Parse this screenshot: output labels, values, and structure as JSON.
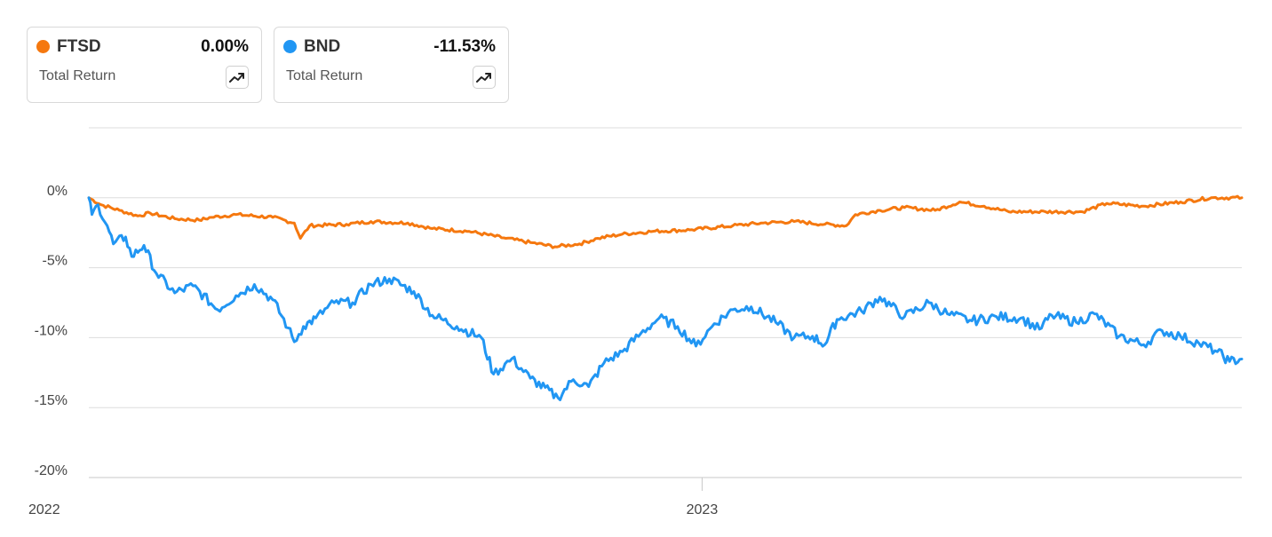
{
  "legend": [
    {
      "ticker": "FTSD",
      "value": "0.00%",
      "label": "Total Return",
      "color": "#f5780f",
      "icon": "trend-up-icon"
    },
    {
      "ticker": "BND",
      "value": "-11.53%",
      "label": "Total Return",
      "color": "#2196f3",
      "icon": "trend-up-icon"
    }
  ],
  "chart_data": {
    "type": "line",
    "x_ticks": [
      "2022",
      "2023"
    ],
    "y_ticks": [
      "0%",
      "-5%",
      "-10%",
      "-15%",
      "-20%"
    ],
    "ylim": [
      -20,
      5
    ],
    "xlim": [
      2022.0,
      2023.88
    ],
    "grid": true,
    "legend_position": "top-left",
    "series": [
      {
        "name": "FTSD",
        "color": "#f5780f",
        "points": [
          [
            2022.0,
            0.0
          ],
          [
            2022.02,
            -0.5
          ],
          [
            2022.05,
            -0.9
          ],
          [
            2022.08,
            -1.3
          ],
          [
            2022.1,
            -1.1
          ],
          [
            2022.14,
            -1.5
          ],
          [
            2022.18,
            -1.6
          ],
          [
            2022.2,
            -1.4
          ],
          [
            2022.24,
            -1.2
          ],
          [
            2022.3,
            -1.4
          ],
          [
            2022.335,
            -1.8
          ],
          [
            2022.345,
            -2.9
          ],
          [
            2022.36,
            -2.0
          ],
          [
            2022.42,
            -1.9
          ],
          [
            2022.46,
            -1.7
          ],
          [
            2022.52,
            -1.8
          ],
          [
            2022.56,
            -2.2
          ],
          [
            2022.62,
            -2.4
          ],
          [
            2022.68,
            -2.9
          ],
          [
            2022.72,
            -3.2
          ],
          [
            2022.76,
            -3.5
          ],
          [
            2022.8,
            -3.3
          ],
          [
            2022.83,
            -2.9
          ],
          [
            2022.87,
            -2.6
          ],
          [
            2022.92,
            -2.4
          ],
          [
            2022.98,
            -2.3
          ],
          [
            2023.05,
            -2.0
          ],
          [
            2023.1,
            -1.8
          ],
          [
            2023.15,
            -1.7
          ],
          [
            2023.2,
            -1.9
          ],
          [
            2023.235,
            -2.0
          ],
          [
            2023.25,
            -1.2
          ],
          [
            2023.29,
            -0.9
          ],
          [
            2023.33,
            -0.7
          ],
          [
            2023.38,
            -0.9
          ],
          [
            2023.42,
            -0.3
          ],
          [
            2023.46,
            -0.6
          ],
          [
            2023.5,
            -1.0
          ],
          [
            2023.56,
            -1.0
          ],
          [
            2023.62,
            -1.0
          ],
          [
            2023.66,
            -0.4
          ],
          [
            2023.72,
            -0.6
          ],
          [
            2023.78,
            -0.3
          ],
          [
            2023.83,
            0.0
          ],
          [
            2023.88,
            0.0
          ]
        ]
      },
      {
        "name": "BND",
        "color": "#2196f3",
        "points": [
          [
            2022.0,
            0.0
          ],
          [
            2022.005,
            -1.2
          ],
          [
            2022.015,
            -0.5
          ],
          [
            2022.03,
            -2.0
          ],
          [
            2022.04,
            -3.3
          ],
          [
            2022.06,
            -2.8
          ],
          [
            2022.07,
            -4.2
          ],
          [
            2022.09,
            -3.4
          ],
          [
            2022.11,
            -5.4
          ],
          [
            2022.14,
            -6.8
          ],
          [
            2022.17,
            -6.3
          ],
          [
            2022.21,
            -8.0
          ],
          [
            2022.24,
            -7.0
          ],
          [
            2022.27,
            -6.2
          ],
          [
            2022.3,
            -7.3
          ],
          [
            2022.325,
            -9.3
          ],
          [
            2022.335,
            -10.3
          ],
          [
            2022.35,
            -9.2
          ],
          [
            2022.37,
            -8.6
          ],
          [
            2022.4,
            -7.5
          ],
          [
            2022.43,
            -7.5
          ],
          [
            2022.46,
            -6.2
          ],
          [
            2022.49,
            -5.8
          ],
          [
            2022.53,
            -6.7
          ],
          [
            2022.56,
            -8.4
          ],
          [
            2022.6,
            -9.2
          ],
          [
            2022.64,
            -10.0
          ],
          [
            2022.66,
            -12.6
          ],
          [
            2022.69,
            -11.5
          ],
          [
            2022.72,
            -12.9
          ],
          [
            2022.765,
            -14.3
          ],
          [
            2022.79,
            -13.0
          ],
          [
            2022.815,
            -13.5
          ],
          [
            2022.84,
            -11.8
          ],
          [
            2022.87,
            -11.0
          ],
          [
            2022.9,
            -9.7
          ],
          [
            2022.93,
            -8.6
          ],
          [
            2022.96,
            -9.2
          ],
          [
            2022.99,
            -10.6
          ],
          [
            2023.02,
            -9.0
          ],
          [
            2023.05,
            -8.0
          ],
          [
            2023.08,
            -7.8
          ],
          [
            2023.12,
            -8.9
          ],
          [
            2023.15,
            -10.0
          ],
          [
            2023.18,
            -9.9
          ],
          [
            2023.2,
            -10.5
          ],
          [
            2023.22,
            -8.7
          ],
          [
            2023.26,
            -8.1
          ],
          [
            2023.29,
            -7.1
          ],
          [
            2023.33,
            -8.5
          ],
          [
            2023.37,
            -7.5
          ],
          [
            2023.4,
            -8.3
          ],
          [
            2023.44,
            -8.8
          ],
          [
            2023.48,
            -8.5
          ],
          [
            2023.52,
            -8.6
          ],
          [
            2023.55,
            -9.4
          ],
          [
            2023.57,
            -8.4
          ],
          [
            2023.61,
            -8.9
          ],
          [
            2023.64,
            -8.3
          ],
          [
            2023.68,
            -9.9
          ],
          [
            2023.72,
            -10.5
          ],
          [
            2023.75,
            -9.5
          ],
          [
            2023.78,
            -9.9
          ],
          [
            2023.81,
            -10.4
          ],
          [
            2023.84,
            -11.0
          ],
          [
            2023.86,
            -11.7
          ],
          [
            2023.88,
            -11.53
          ]
        ]
      }
    ]
  }
}
